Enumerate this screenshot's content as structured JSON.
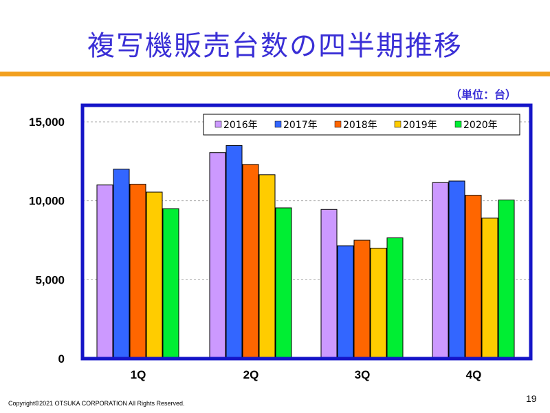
{
  "header": {
    "title": "複写機販売台数の四半期推移",
    "unit": "（単位：台）"
  },
  "footer": {
    "copyright": "Copyright©2021 OTSUKA CORPORATION All Rights Reserved.",
    "page": "19"
  },
  "colors": {
    "title": "#3a2fd6",
    "accent_rule": "#f2a01f",
    "frame": "#1515c8"
  },
  "chart_data": {
    "type": "bar",
    "categories": [
      "1Q",
      "2Q",
      "3Q",
      "4Q"
    ],
    "ylim": [
      0,
      15000
    ],
    "yticks": [
      "0",
      "5,000",
      "10,000",
      "15,000"
    ],
    "ytick_values": [
      0,
      5000,
      10000,
      15000
    ],
    "grid": true,
    "legend_position": "top-right",
    "series": [
      {
        "name": "2016年",
        "color": "#cc99ff",
        "values": [
          11000,
          13050,
          9450,
          11150
        ]
      },
      {
        "name": "2017年",
        "color": "#3366ff",
        "values": [
          12000,
          13500,
          7150,
          11250
        ]
      },
      {
        "name": "2018年",
        "color": "#ff6600",
        "values": [
          11050,
          12300,
          7500,
          10350
        ]
      },
      {
        "name": "2019年",
        "color": "#ffcc00",
        "values": [
          10550,
          11650,
          7000,
          8900
        ]
      },
      {
        "name": "2020年",
        "color": "#00ee33",
        "values": [
          9500,
          9550,
          7650,
          10050
        ]
      }
    ]
  }
}
